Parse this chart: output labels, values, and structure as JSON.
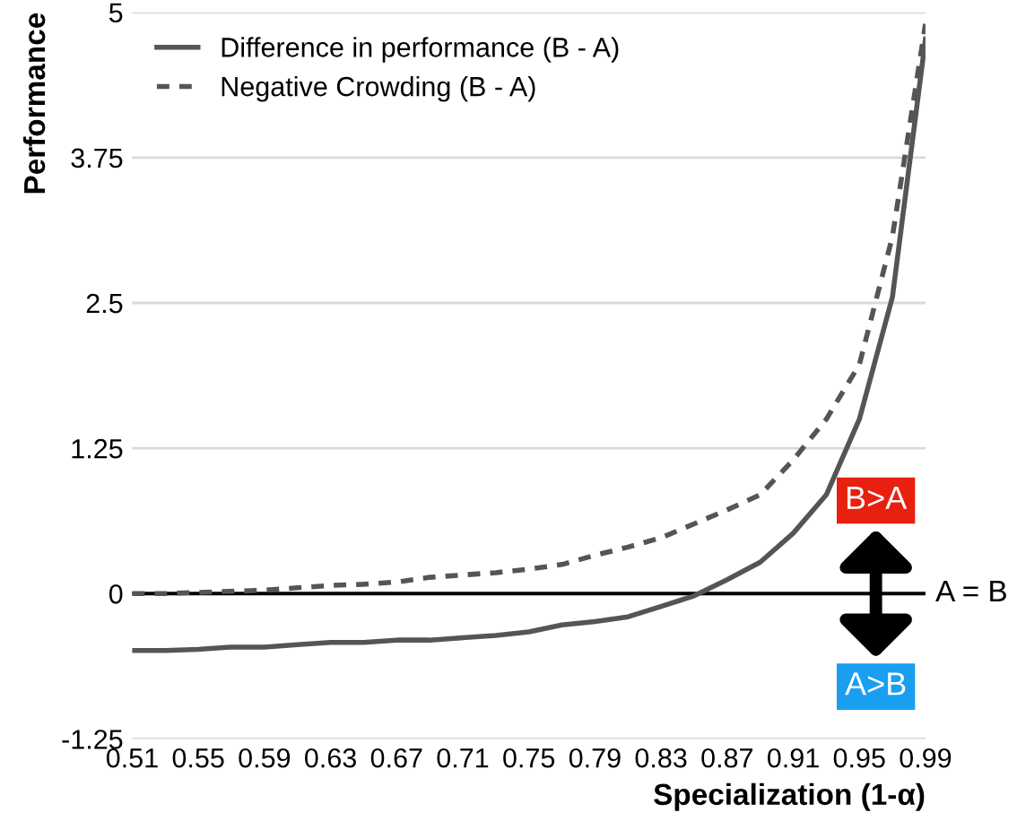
{
  "chart_data": {
    "type": "line",
    "xlabel": "Specialization (1-α)",
    "ylabel": "Performance",
    "x": [
      0.51,
      0.53,
      0.55,
      0.57,
      0.59,
      0.61,
      0.63,
      0.65,
      0.67,
      0.69,
      0.71,
      0.73,
      0.75,
      0.77,
      0.79,
      0.81,
      0.83,
      0.85,
      0.87,
      0.89,
      0.91,
      0.93,
      0.95,
      0.97,
      0.99
    ],
    "series": [
      {
        "name": "Difference in performance (B - A)",
        "color": "#555555",
        "line_style": "solid",
        "values": [
          -0.49,
          -0.49,
          -0.48,
          -0.46,
          -0.46,
          -0.44,
          -0.42,
          -0.42,
          -0.4,
          -0.4,
          -0.38,
          -0.36,
          -0.33,
          -0.27,
          -0.24,
          -0.2,
          -0.11,
          -0.02,
          0.12,
          0.27,
          0.52,
          0.85,
          1.5,
          2.55,
          4.77
        ]
      },
      {
        "name": "Negative Crowding (B - A)",
        "color": "#555555",
        "line_style": "dashed",
        "values": [
          0,
          0,
          0.01,
          0.02,
          0.03,
          0.05,
          0.07,
          0.08,
          0.1,
          0.14,
          0.16,
          0.18,
          0.21,
          0.25,
          0.33,
          0.4,
          0.48,
          0.6,
          0.72,
          0.85,
          1.15,
          1.5,
          1.97,
          3.07,
          4.9
        ]
      }
    ],
    "xlim": [
      0.51,
      0.99
    ],
    "xticks": [
      0.51,
      0.55,
      0.59,
      0.63,
      0.67,
      0.71,
      0.75,
      0.79,
      0.83,
      0.87,
      0.91,
      0.95,
      0.99
    ],
    "ylim": [
      -1.25,
      5
    ],
    "yticks": [
      -1.25,
      0,
      1.25,
      2.5,
      3.75,
      5
    ],
    "ref_lines": [
      {
        "axis": "y",
        "value": 0,
        "label": "A = B",
        "color": "#000000"
      }
    ],
    "annotations": [
      {
        "text": "B>A",
        "x": 0.96,
        "y": 0.8
      },
      {
        "text": "A>B",
        "x": 0.96,
        "y": -0.8
      }
    ],
    "grid": "y",
    "legend": "top left",
    "marker": "none"
  }
}
